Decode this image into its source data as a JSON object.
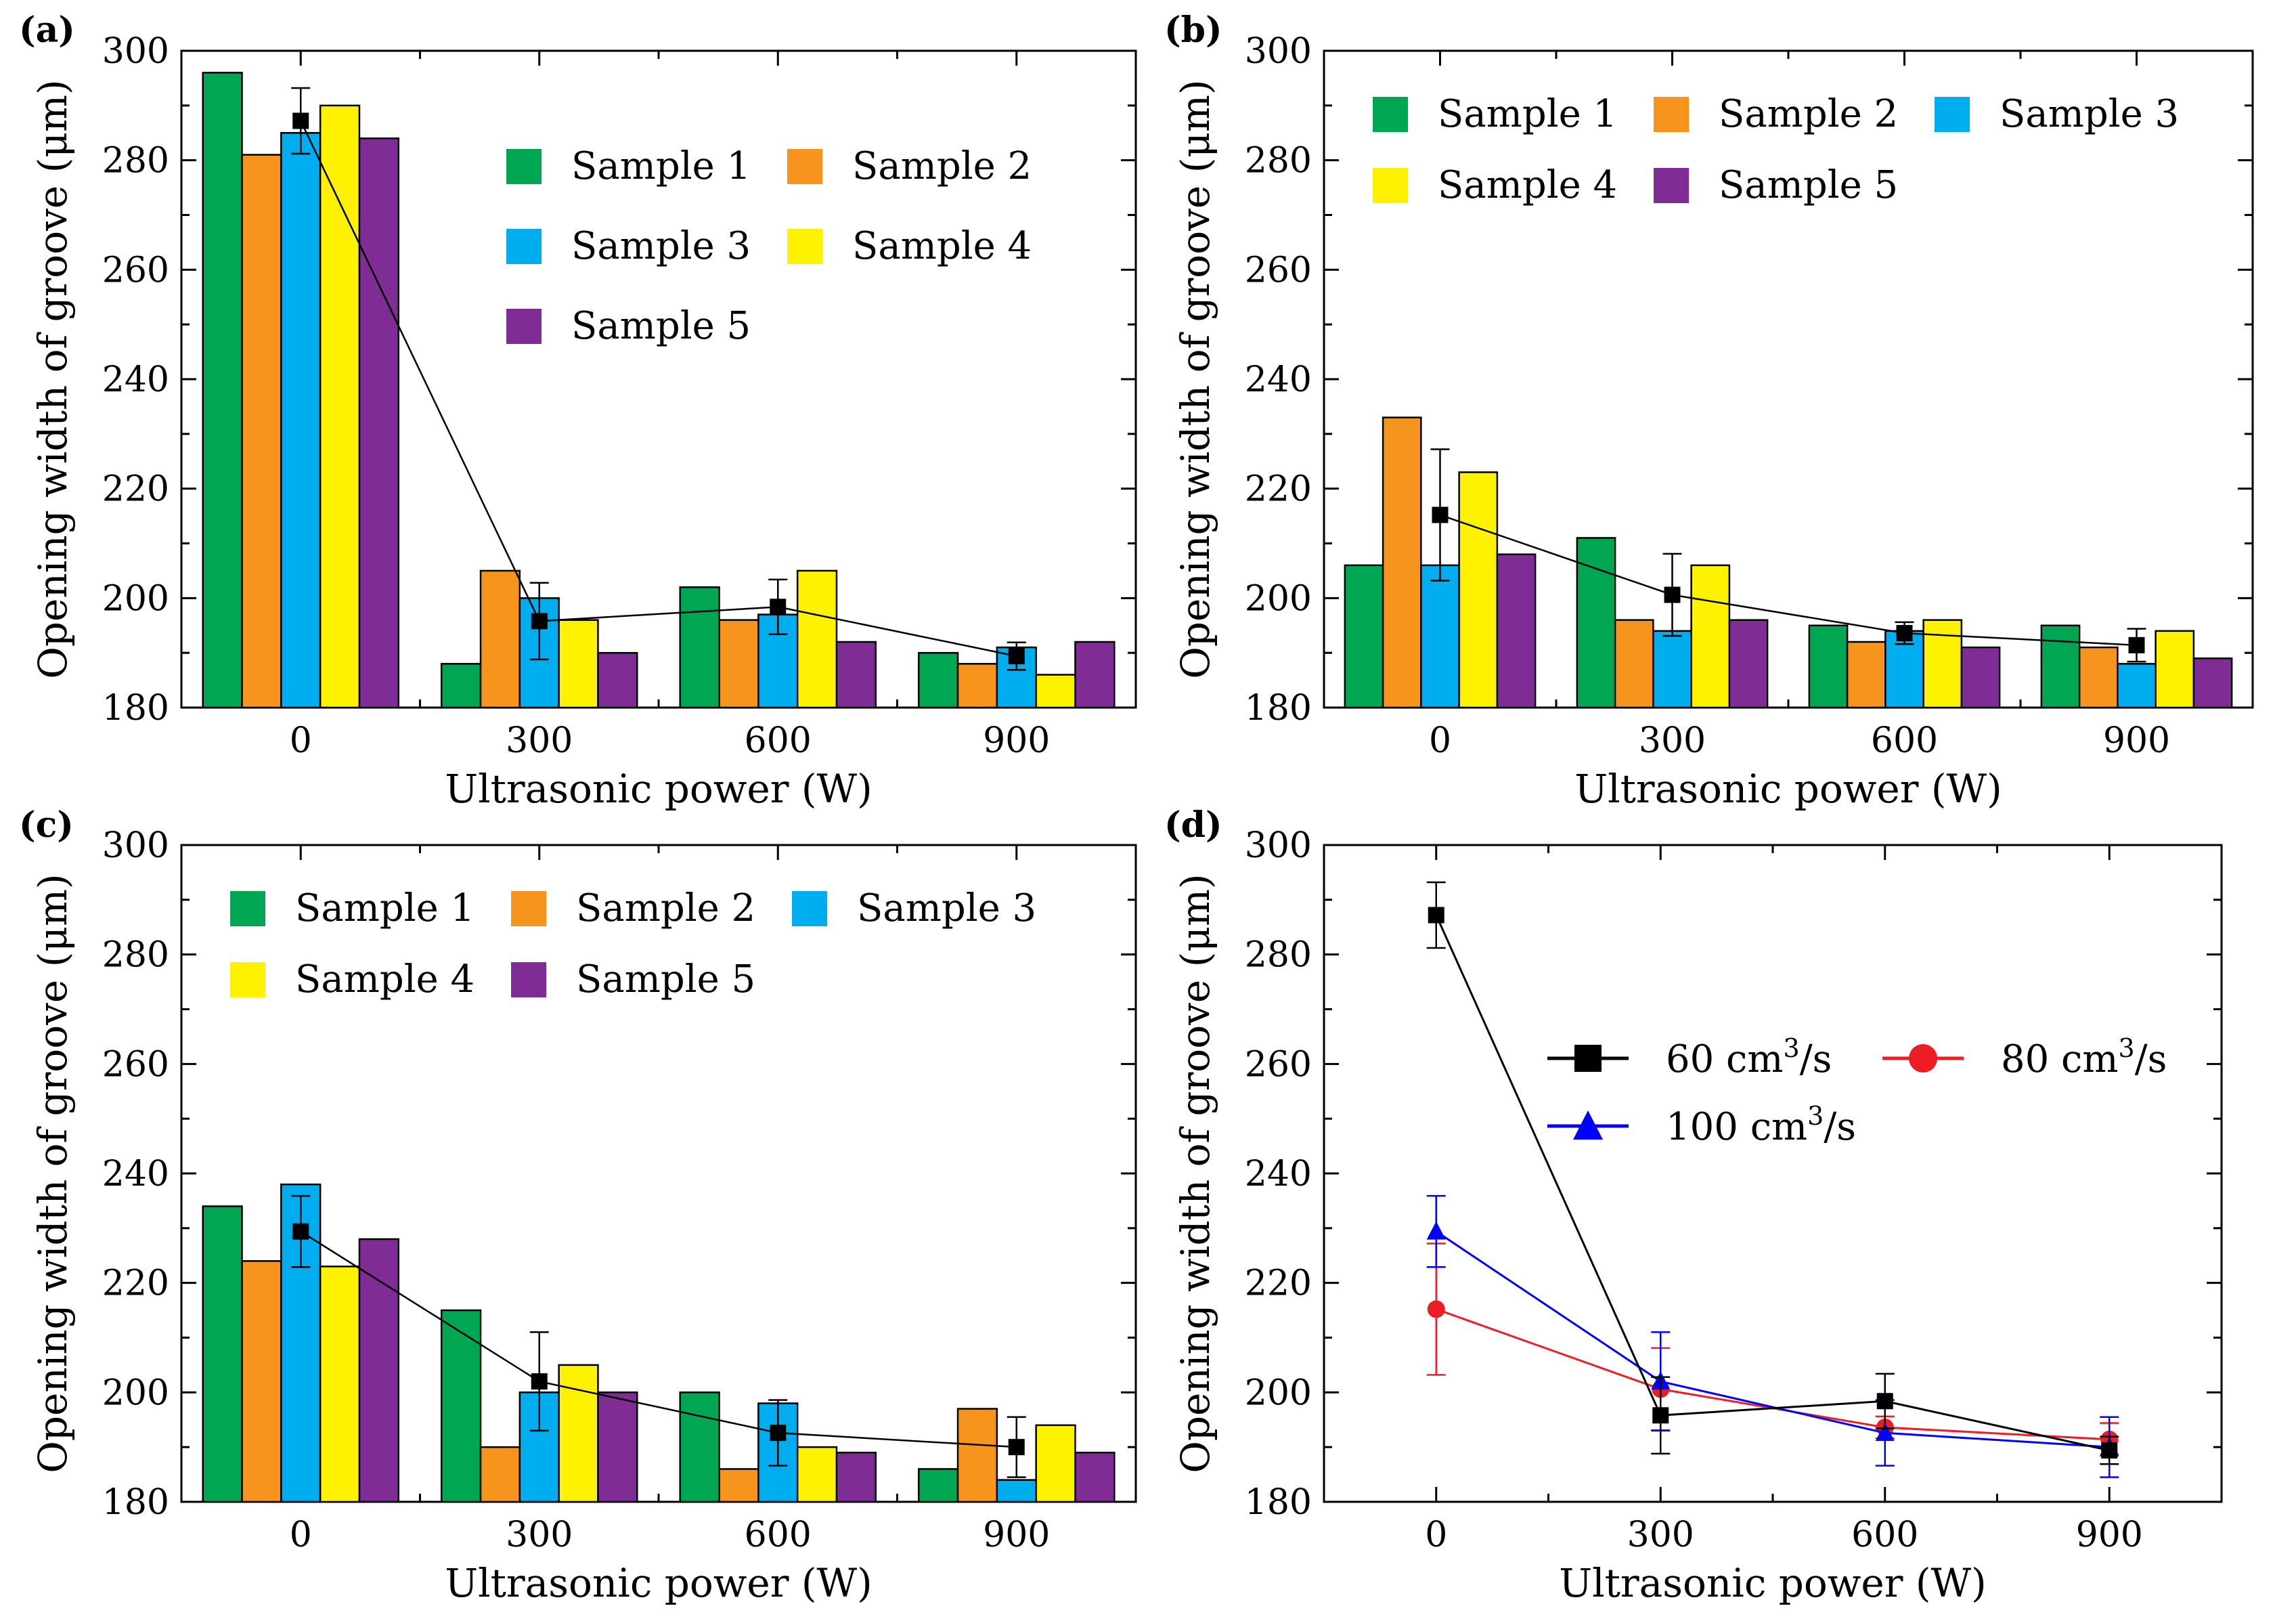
{
  "chart_data": [
    {
      "panel": "(a)",
      "type": "bar",
      "categories": [
        "0",
        "300",
        "600",
        "900"
      ],
      "series": [
        {
          "name": "Sample 1",
          "color": "#00A651",
          "values": [
            296,
            188,
            202,
            190
          ]
        },
        {
          "name": "Sample 2",
          "color": "#F7941D",
          "values": [
            281,
            205,
            196,
            188
          ]
        },
        {
          "name": "Sample 3",
          "color": "#00AEEF",
          "values": [
            285,
            200,
            197,
            191
          ]
        },
        {
          "name": "Sample 4",
          "color": "#FFF200",
          "values": [
            290,
            196,
            205,
            186
          ]
        },
        {
          "name": "Sample 5",
          "color": "#7F2C95",
          "values": [
            284,
            190,
            192,
            192
          ]
        }
      ],
      "mean": {
        "values": [
          287.2,
          195.8,
          198.4,
          189.4
        ],
        "err": [
          6,
          7,
          5,
          2.5
        ]
      },
      "xlabel": "Ultrasonic power (W)",
      "ylabel": "Opening width of groove (μm)",
      "ylim": [
        180,
        300
      ],
      "yticks": [
        "180",
        "200",
        "220",
        "240",
        "260",
        "280",
        "300"
      ],
      "legend_layout": "2col",
      "legend_position": "upper-right"
    },
    {
      "panel": "(b)",
      "type": "bar",
      "categories": [
        "0",
        "300",
        "600",
        "900"
      ],
      "series": [
        {
          "name": "Sample 1",
          "color": "#00A651",
          "values": [
            206,
            211,
            195,
            195
          ]
        },
        {
          "name": "Sample 2",
          "color": "#F7941D",
          "values": [
            233,
            196,
            192,
            191
          ]
        },
        {
          "name": "Sample 3",
          "color": "#00AEEF",
          "values": [
            206,
            194,
            194,
            188
          ]
        },
        {
          "name": "Sample 4",
          "color": "#FFF200",
          "values": [
            223,
            206,
            196,
            194
          ]
        },
        {
          "name": "Sample 5",
          "color": "#7F2C95",
          "values": [
            208,
            196,
            191,
            189
          ]
        }
      ],
      "mean": {
        "values": [
          215.2,
          200.6,
          193.6,
          191.4
        ],
        "err": [
          12,
          7.5,
          2,
          3
        ]
      },
      "xlabel": "Ultrasonic power (W)",
      "ylabel": "Opening width of groove (μm)",
      "ylim": [
        180,
        300
      ],
      "yticks": [
        "180",
        "200",
        "220",
        "240",
        "260",
        "280",
        "300"
      ],
      "legend_layout": "3col",
      "legend_position": "upper-left"
    },
    {
      "panel": "(c)",
      "type": "bar",
      "categories": [
        "0",
        "300",
        "600",
        "900"
      ],
      "series": [
        {
          "name": "Sample 1",
          "color": "#00A651",
          "values": [
            234,
            215,
            200,
            186
          ]
        },
        {
          "name": "Sample 2",
          "color": "#F7941D",
          "values": [
            224,
            190,
            186,
            197
          ]
        },
        {
          "name": "Sample 3",
          "color": "#00AEEF",
          "values": [
            238,
            200,
            198,
            184
          ]
        },
        {
          "name": "Sample 4",
          "color": "#FFF200",
          "values": [
            223,
            205,
            190,
            194
          ]
        },
        {
          "name": "Sample 5",
          "color": "#7F2C95",
          "values": [
            228,
            200,
            189,
            189
          ]
        }
      ],
      "mean": {
        "values": [
          229.4,
          202,
          192.6,
          190
        ],
        "err": [
          6.5,
          9,
          6,
          5.5
        ]
      },
      "xlabel": "Ultrasonic power (W)",
      "ylabel": "Opening width of groove (μm)",
      "ylim": [
        180,
        300
      ],
      "yticks": [
        "180",
        "200",
        "220",
        "240",
        "260",
        "280",
        "300"
      ],
      "legend_layout": "3col",
      "legend_position": "upper-left"
    },
    {
      "panel": "(d)",
      "type": "line",
      "x": [
        0,
        300,
        600,
        900
      ],
      "xticks": [
        "0",
        "300",
        "600",
        "900"
      ],
      "series": [
        {
          "name": "60 cm",
          "unit_sup": "3",
          "unit_tail": "/s",
          "color": "#000000",
          "marker": "square",
          "values": [
            287.2,
            195.8,
            198.4,
            189.4
          ],
          "err": [
            6,
            7,
            5,
            2.5
          ]
        },
        {
          "name": "80 cm",
          "unit_sup": "3",
          "unit_tail": "/s",
          "color": "#EE1C24",
          "marker": "circle",
          "values": [
            215.2,
            200.6,
            193.6,
            191.4
          ],
          "err": [
            12,
            7.5,
            2,
            3
          ]
        },
        {
          "name": "100 cm",
          "unit_sup": "3",
          "unit_tail": "/s",
          "color": "#0000FF",
          "marker": "triangle",
          "values": [
            229.4,
            202,
            192.6,
            190
          ],
          "err": [
            6.5,
            9,
            6,
            5.5
          ]
        }
      ],
      "xlabel": "Ultrasonic power (W)",
      "ylabel": "Opening width of groove (μm)",
      "xlim": [
        -150,
        1050
      ],
      "ylim": [
        180,
        300
      ],
      "yticks": [
        "180",
        "200",
        "220",
        "240",
        "260",
        "280",
        "300"
      ],
      "legend_position": "upper-right"
    }
  ]
}
